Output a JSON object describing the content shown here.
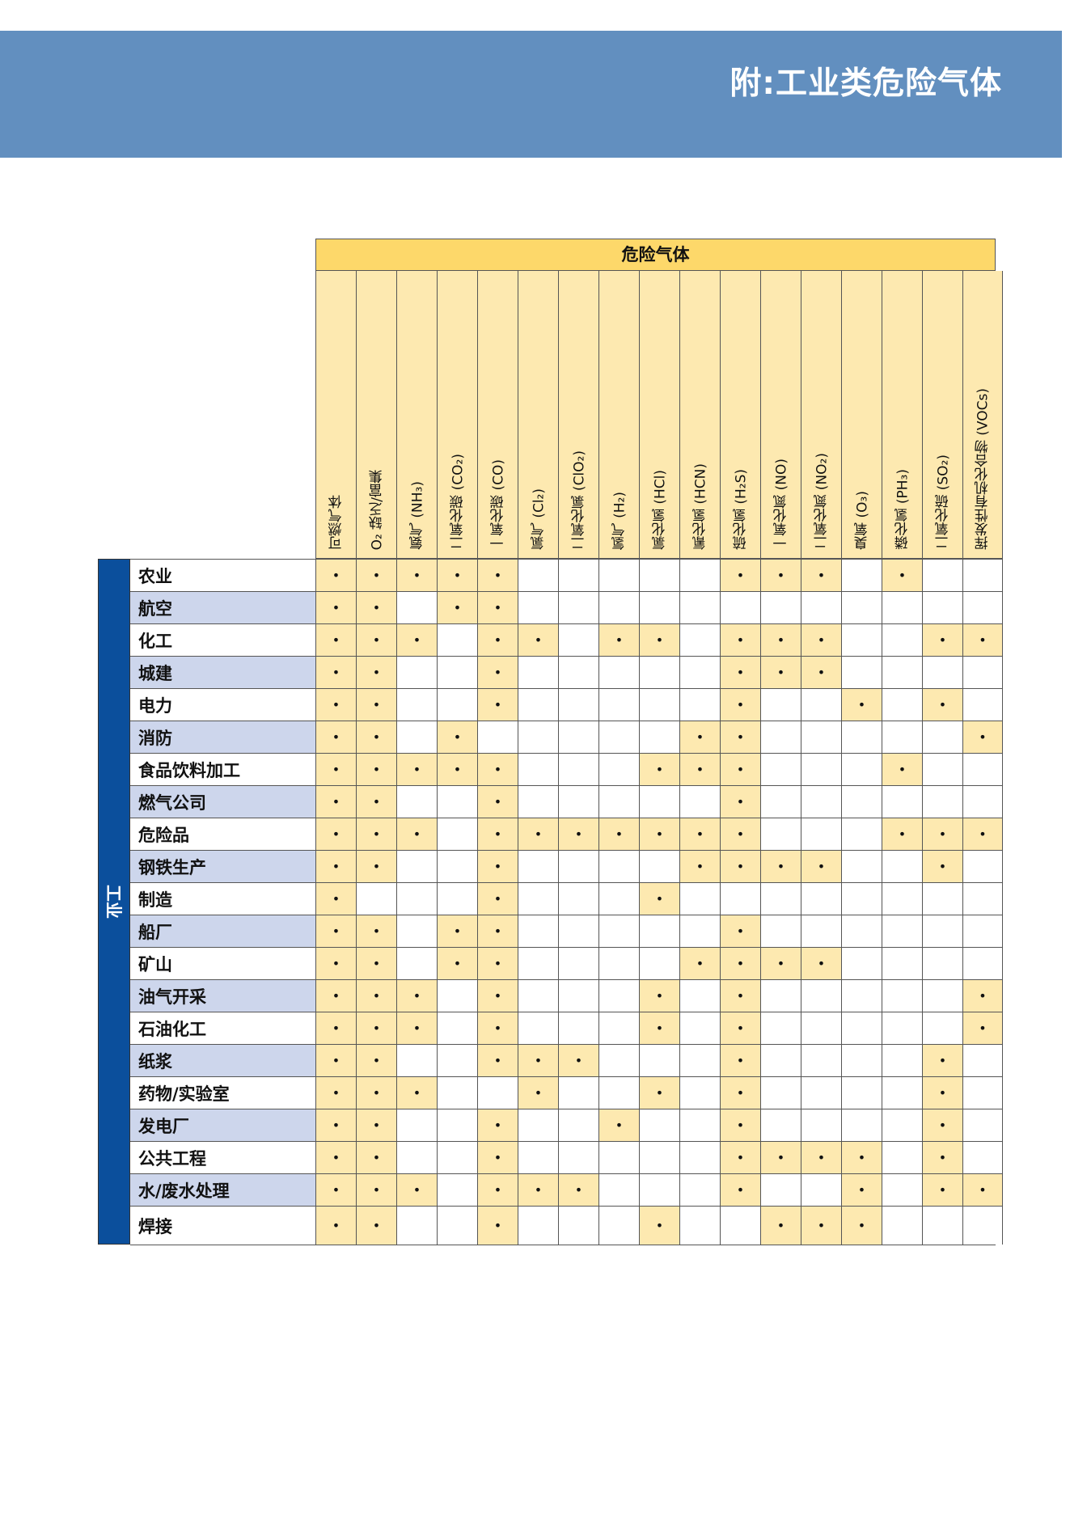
{
  "header": {
    "title": "附:工业类危险气体"
  },
  "table": {
    "group_header": "危险气体",
    "side_label": "工业",
    "dot": "•",
    "colors": {
      "stripe": "#fde9b0",
      "row_alt": "#cdd6ec",
      "banner": "#628fbf",
      "side": "#0b4f9c",
      "band": "#fdd86a"
    },
    "columns": [
      "可燃气体",
      "O₂ 缺乏/富集",
      "氨气 (NH₃)",
      "二氧化碳 (CO₂)",
      "一氧化碳 (CO)",
      "氯气 (Cl₂)",
      "二氧化氯 (ClO₂)",
      "氢气 (H₂)",
      "氯化氢 (HCl)",
      "氰化氢 (HCN)",
      "硫化氢 (H₂S)",
      "一氧化氮 (NO)",
      "二氧化氮 (NO₂)",
      "臭氧 (O₃)",
      "磷化氢 (PH₃)",
      "二氧化硫 (SO₂)",
      "挥发性有机化合物 (VOCs)"
    ],
    "rows": [
      {
        "label": "农业",
        "marks": [
          1,
          1,
          1,
          1,
          1,
          0,
          0,
          0,
          0,
          0,
          1,
          1,
          1,
          0,
          1,
          0,
          0
        ]
      },
      {
        "label": "航空",
        "marks": [
          1,
          1,
          0,
          1,
          1,
          0,
          0,
          0,
          0,
          0,
          0,
          0,
          0,
          0,
          0,
          0,
          0
        ]
      },
      {
        "label": "化工",
        "marks": [
          1,
          1,
          1,
          0,
          1,
          1,
          0,
          1,
          1,
          0,
          1,
          1,
          1,
          0,
          0,
          1,
          1
        ]
      },
      {
        "label": "城建",
        "marks": [
          1,
          1,
          0,
          0,
          1,
          0,
          0,
          0,
          0,
          0,
          1,
          1,
          1,
          0,
          0,
          0,
          0
        ]
      },
      {
        "label": "电力",
        "marks": [
          1,
          1,
          0,
          0,
          1,
          0,
          0,
          0,
          0,
          0,
          1,
          0,
          0,
          1,
          0,
          1,
          0
        ]
      },
      {
        "label": "消防",
        "marks": [
          1,
          1,
          0,
          1,
          0,
          0,
          0,
          0,
          0,
          1,
          1,
          0,
          0,
          0,
          0,
          0,
          1
        ]
      },
      {
        "label": "食品饮料加工",
        "marks": [
          1,
          1,
          1,
          1,
          1,
          0,
          0,
          0,
          1,
          1,
          1,
          0,
          0,
          0,
          1,
          0,
          0
        ]
      },
      {
        "label": "燃气公司",
        "marks": [
          1,
          1,
          0,
          0,
          1,
          0,
          0,
          0,
          0,
          0,
          1,
          0,
          0,
          0,
          0,
          0,
          0
        ]
      },
      {
        "label": "危险品",
        "marks": [
          1,
          1,
          1,
          0,
          1,
          1,
          1,
          1,
          1,
          1,
          1,
          0,
          0,
          0,
          1,
          1,
          1
        ]
      },
      {
        "label": "钢铁生产",
        "marks": [
          1,
          1,
          0,
          0,
          1,
          0,
          0,
          0,
          0,
          1,
          1,
          1,
          1,
          0,
          0,
          1,
          0
        ]
      },
      {
        "label": "制造",
        "marks": [
          1,
          0,
          0,
          0,
          1,
          0,
          0,
          0,
          1,
          0,
          0,
          0,
          0,
          0,
          0,
          0,
          0
        ]
      },
      {
        "label": "船厂",
        "marks": [
          1,
          1,
          0,
          1,
          1,
          0,
          0,
          0,
          0,
          0,
          1,
          0,
          0,
          0,
          0,
          0,
          0
        ]
      },
      {
        "label": "矿山",
        "marks": [
          1,
          1,
          0,
          1,
          1,
          0,
          0,
          0,
          0,
          1,
          1,
          1,
          1,
          0,
          0,
          0,
          0
        ]
      },
      {
        "label": "油气开采",
        "marks": [
          1,
          1,
          1,
          0,
          1,
          0,
          0,
          0,
          1,
          0,
          1,
          0,
          0,
          0,
          0,
          0,
          1
        ]
      },
      {
        "label": "石油化工",
        "marks": [
          1,
          1,
          1,
          0,
          1,
          0,
          0,
          0,
          1,
          0,
          1,
          0,
          0,
          0,
          0,
          0,
          1
        ]
      },
      {
        "label": "纸浆",
        "marks": [
          1,
          1,
          0,
          0,
          1,
          1,
          1,
          0,
          0,
          0,
          1,
          0,
          0,
          0,
          0,
          1,
          0
        ]
      },
      {
        "label": "药物/实验室",
        "marks": [
          1,
          1,
          1,
          0,
          0,
          1,
          0,
          0,
          1,
          0,
          1,
          0,
          0,
          0,
          0,
          1,
          0
        ]
      },
      {
        "label": "发电厂",
        "marks": [
          1,
          1,
          0,
          0,
          1,
          0,
          0,
          1,
          0,
          0,
          1,
          0,
          0,
          0,
          0,
          1,
          0
        ]
      },
      {
        "label": "公共工程",
        "marks": [
          1,
          1,
          0,
          0,
          1,
          0,
          0,
          0,
          0,
          0,
          1,
          1,
          1,
          1,
          0,
          1,
          0
        ]
      },
      {
        "label": "水/废水处理",
        "marks": [
          1,
          1,
          1,
          0,
          1,
          1,
          1,
          0,
          0,
          0,
          1,
          0,
          0,
          1,
          0,
          1,
          1
        ]
      },
      {
        "label": "焊接",
        "marks": [
          1,
          1,
          0,
          0,
          1,
          0,
          0,
          0,
          1,
          0,
          0,
          1,
          1,
          1,
          0,
          0,
          0
        ]
      }
    ]
  }
}
